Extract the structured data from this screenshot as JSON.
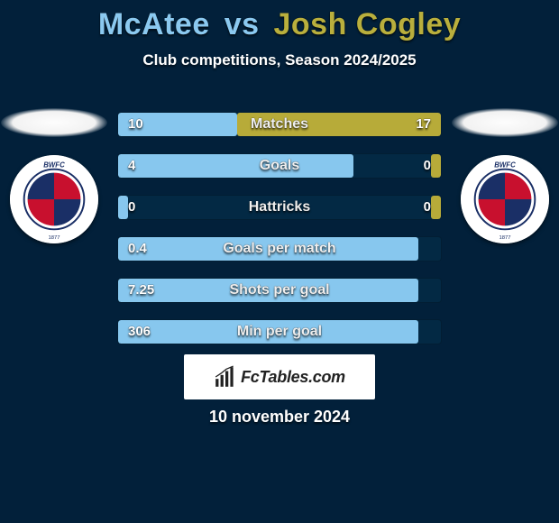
{
  "title": {
    "player1": "McAtee",
    "vs": "vs",
    "player2": "Josh Cogley",
    "player1_color": "#8bc9f0",
    "player2_color": "#b9af3d"
  },
  "subtitle": "Club competitions, Season 2024/2025",
  "bars": {
    "track_color": "#032944",
    "left_fill_color": "#87c7ee",
    "right_fill_color": "#b7ab39",
    "rows": [
      {
        "label": "Matches",
        "left_value": "10",
        "right_value": "17",
        "left_pct": 37,
        "right_pct": 63
      },
      {
        "label": "Goals",
        "left_value": "4",
        "right_value": "0",
        "left_pct": 73,
        "right_pct": 3
      },
      {
        "label": "Hattricks",
        "left_value": "0",
        "right_value": "0",
        "left_pct": 3,
        "right_pct": 3
      },
      {
        "label": "Goals per match",
        "left_value": "0.4",
        "right_value": "",
        "left_pct": 93,
        "right_pct": 0
      },
      {
        "label": "Shots per goal",
        "left_value": "7.25",
        "right_value": "",
        "left_pct": 93,
        "right_pct": 0
      },
      {
        "label": "Min per goal",
        "left_value": "306",
        "right_value": "",
        "left_pct": 93,
        "right_pct": 0
      }
    ]
  },
  "branding": "FcTables.com",
  "date": "10 november 2024",
  "colors": {
    "background": "#02203a",
    "text": "#ffffff"
  }
}
